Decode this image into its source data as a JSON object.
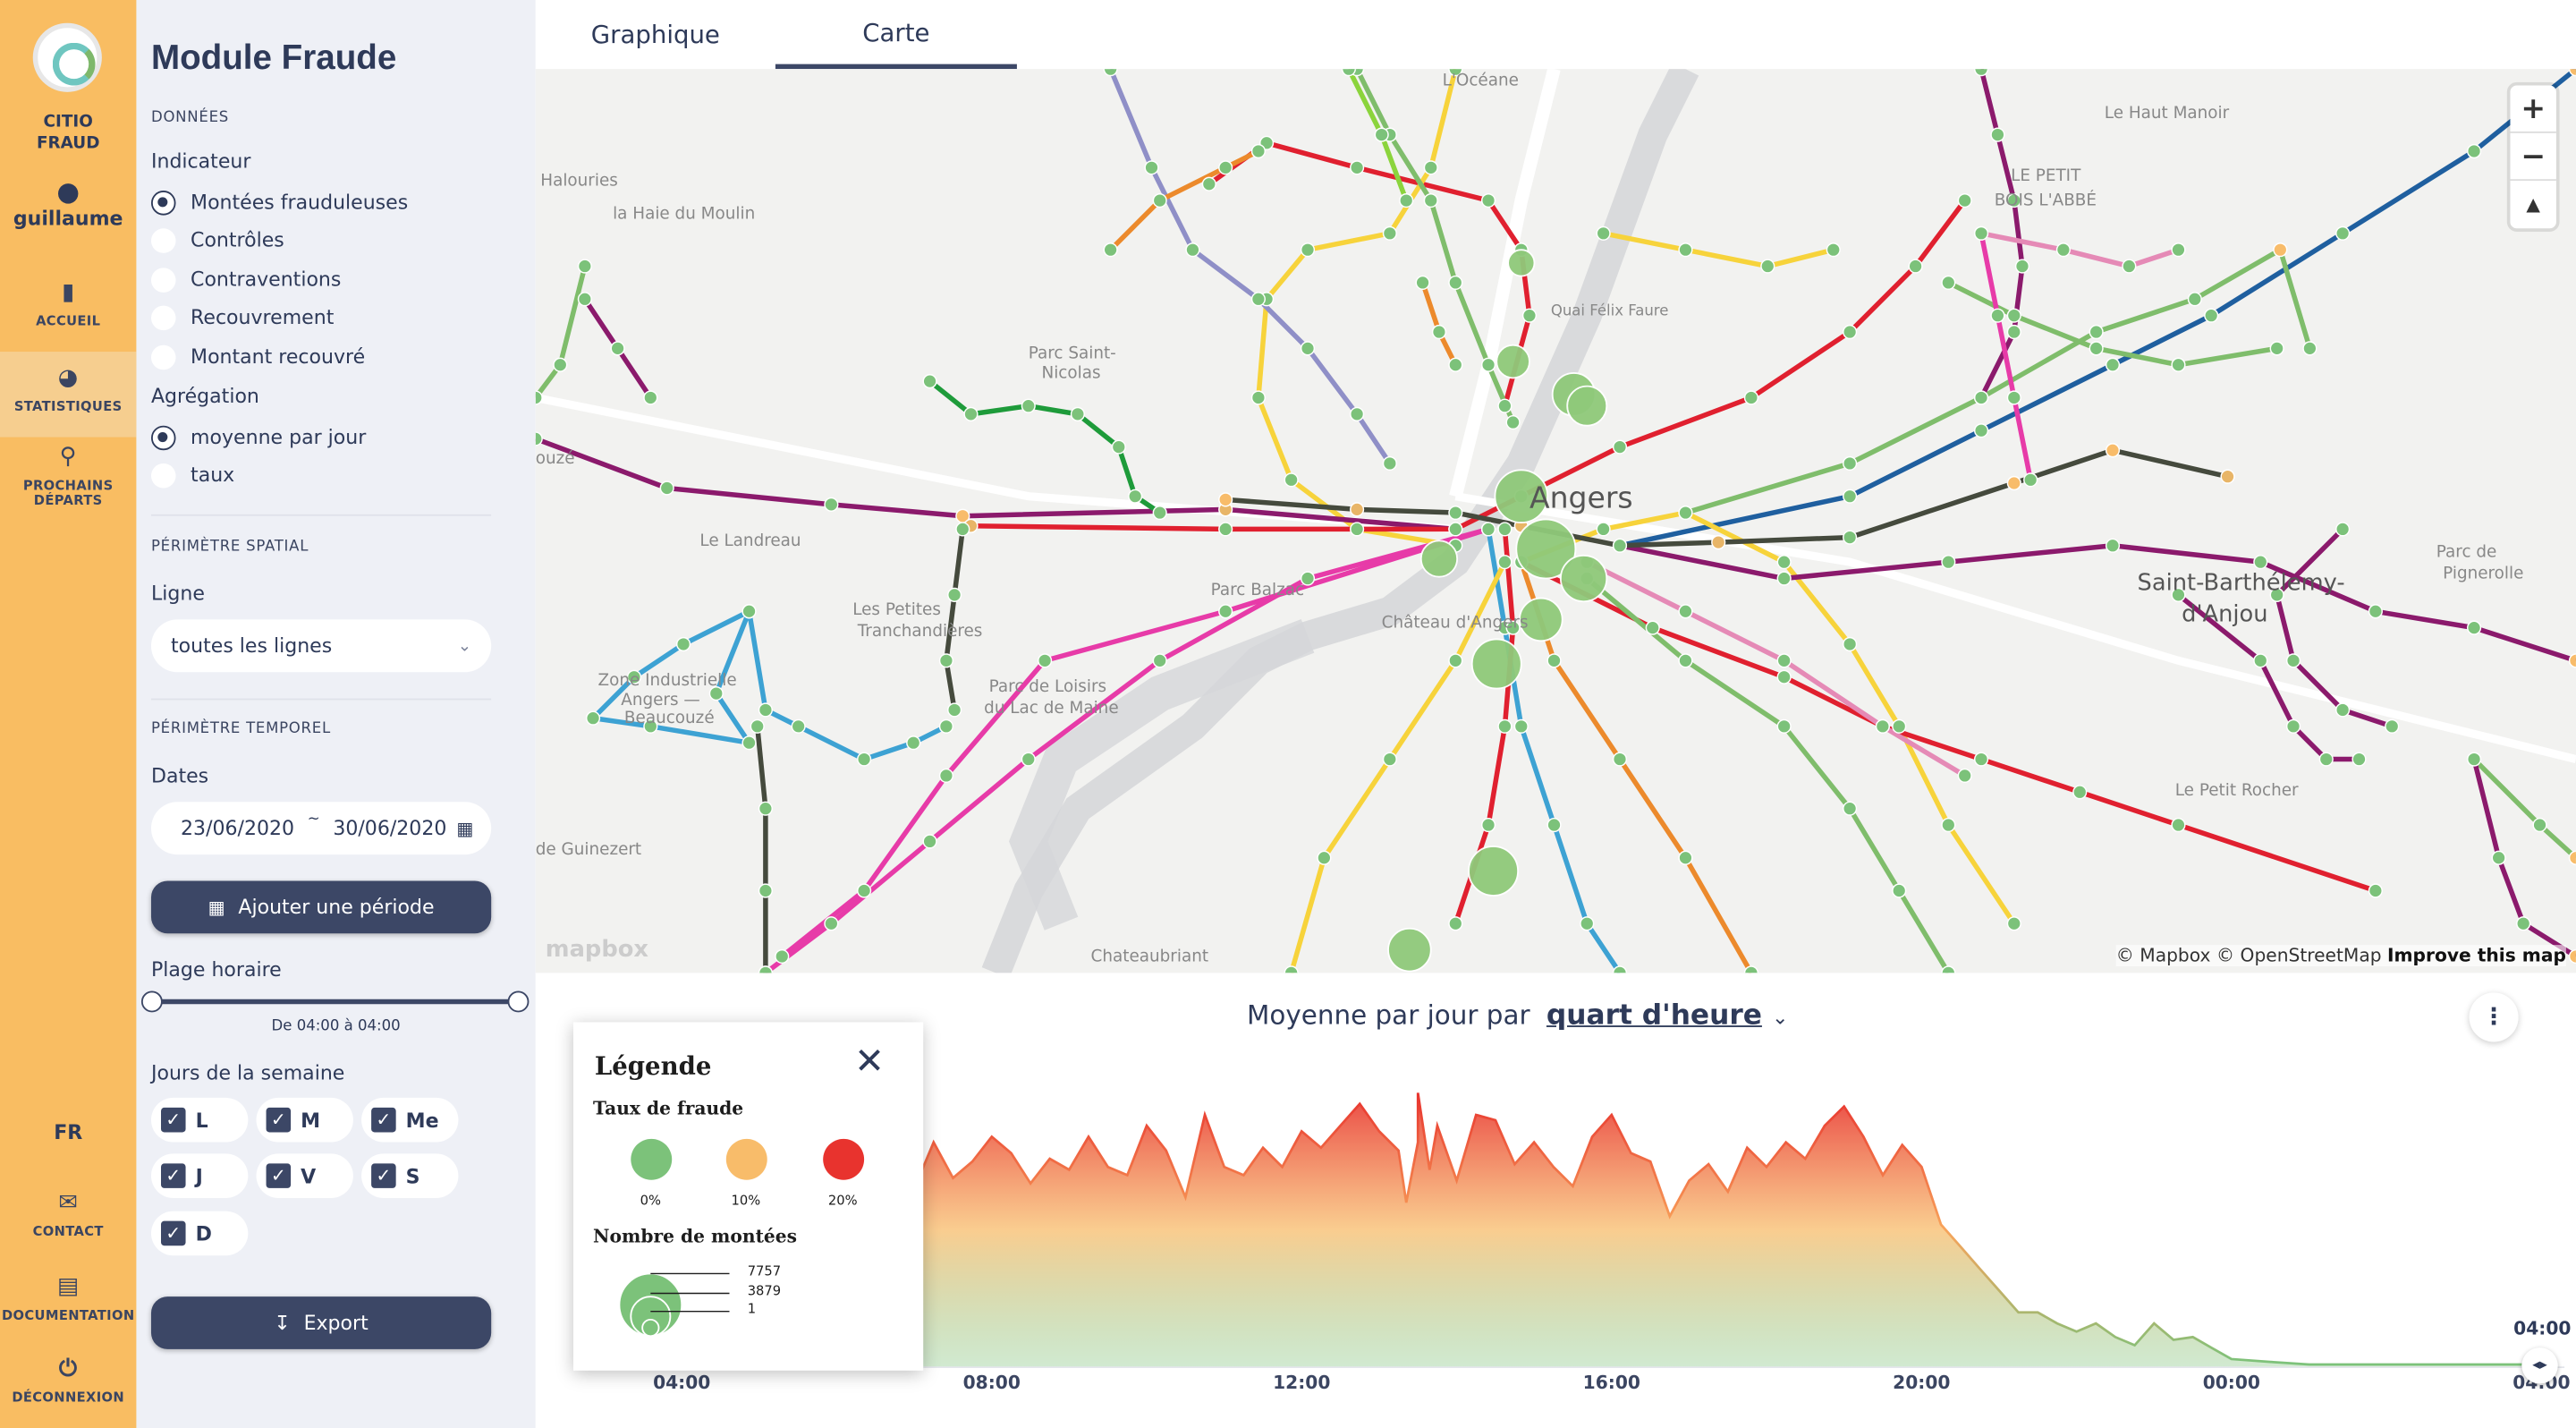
{
  "nav": {
    "brand_line1": "CITIO",
    "brand_line2": "FRAUD",
    "user": "guillaume",
    "items": [
      {
        "label": "ACCUEIL",
        "icon": "bar-chart-icon"
      },
      {
        "label": "STATISTIQUES",
        "icon": "pie-chart-icon"
      },
      {
        "label_line1": "PROCHAINS",
        "label_line2": "DÉPARTS",
        "icon": "map-pin-icon"
      }
    ],
    "lang": "FR",
    "contact": "CONTACT",
    "documentation": "DOCUMENTATION",
    "logout": "DÉCONNEXION",
    "accent_color": "#f9bd62"
  },
  "panel": {
    "title": "Module Fraude",
    "section_data": "DONNÉES",
    "indicator_label": "Indicateur",
    "indicators": [
      "Montées frauduleuses",
      "Contrôles",
      "Contraventions",
      "Recouvrement",
      "Montant recouvré"
    ],
    "indicator_selected": "Montées frauduleuses",
    "aggregation_label": "Agrégation",
    "aggregations": [
      "moyenne par jour",
      "taux"
    ],
    "aggregation_selected": "moyenne par jour",
    "section_spatial": "PÉRIMÈTRE SPATIAL",
    "line_label": "Ligne",
    "line_value": "toutes les lignes",
    "section_temporal": "PÉRIMÈTRE TEMPOREL",
    "dates_label": "Dates",
    "date_start": "23/06/2020",
    "date_sep": "~",
    "date_end": "30/06/2020",
    "add_period": "Ajouter une période",
    "time_range_label": "Plage horaire",
    "time_range_value": "De 04:00 à 04:00",
    "days_label": "Jours de la semaine",
    "days": [
      "L",
      "M",
      "Me",
      "J",
      "V",
      "S",
      "D"
    ],
    "export": "Export"
  },
  "tabs": {
    "chart": "Graphique",
    "map": "Carte",
    "active": "Carte"
  },
  "map": {
    "zoom_in": "+",
    "zoom_out": "−",
    "compass": "▲",
    "attribution_mapbox": "© Mapbox",
    "attribution_osm": "© OpenStreetMap",
    "improve": "Improve this map",
    "logo": "mapbox",
    "place_labels": [
      "L'Océane",
      "Le Haut Manoir",
      "Halouries",
      "la Haie du Moulin",
      "LE PETIT",
      "BOIS L'ABBÉ",
      "Parc Saint-",
      "Nicolas",
      "Quai Félix Faure",
      "Angers",
      "ouzé",
      "Le Landreau",
      "Château d'Angers",
      "Les Petites",
      "Tranchandières",
      "Parc Balzac",
      "Saint-Barthélemy-",
      "d'Anjou",
      "Parc de",
      "Pignerolle",
      "Zone Industrielle",
      "Angers —",
      "Beaucouzé",
      "Parc de Loisirs",
      "du Lac de Maine",
      "Le Petit Rocher",
      "de Guinezert",
      "Chateaubriant"
    ]
  },
  "chart": {
    "title_prefix": "Moyenne par jour par",
    "granularity": "quart d'heure",
    "end_label": "04:00",
    "menu_icon": "kebab-menu-icon"
  },
  "legend": {
    "title": "Légende",
    "rate_title": "Taux de fraude",
    "rates": [
      {
        "label": "0%",
        "color": "#7cc27a"
      },
      {
        "label": "10%",
        "color": "#f8bc6a"
      },
      {
        "label": "20%",
        "color": "#e8332e"
      }
    ],
    "count_title": "Nombre de montées",
    "counts": [
      "7757",
      "3879",
      "1"
    ]
  },
  "chart_data": {
    "type": "area",
    "title": "Moyenne par jour par quart d'heure",
    "xlabel": "",
    "ylabel": "",
    "x_ticks": [
      "04:00",
      "08:00",
      "12:00",
      "16:00",
      "20:00",
      "00:00",
      "04:00"
    ],
    "gradient_colors": [
      "#7cc27a",
      "#f8bc6a",
      "#e8332e"
    ],
    "x_hours": [
      4.0,
      4.25,
      4.5,
      4.75,
      5.0,
      5.25,
      5.5,
      5.75,
      6.0,
      6.25,
      6.5,
      6.75,
      7.0,
      7.25,
      7.5,
      7.75,
      8.0,
      8.25,
      8.5,
      8.75,
      9.0,
      9.25,
      9.5,
      9.75,
      10.0,
      10.25,
      10.5,
      10.75,
      11.0,
      11.25,
      11.5,
      11.75,
      12.0,
      12.25,
      12.5,
      12.75,
      13.0,
      13.25,
      13.5,
      13.75,
      14.0,
      14.25,
      14.5,
      14.75,
      15.0,
      15.25,
      15.5,
      15.75,
      16.0,
      16.25,
      16.5,
      16.75,
      17.0,
      17.25,
      17.5,
      17.75,
      18.0,
      18.25,
      18.5,
      18.75,
      19.0,
      19.25,
      19.5,
      19.75,
      20.0,
      20.25,
      20.5,
      20.75,
      21.0,
      21.25,
      21.5,
      21.75,
      22.0,
      22.25,
      22.5,
      22.75,
      23.0,
      23.25,
      23.5,
      23.75,
      24.0,
      24.5,
      25.0,
      26.0,
      27.0,
      28.0
    ],
    "values": [
      58,
      62,
      60,
      55,
      64,
      68,
      66,
      72,
      70,
      74,
      78,
      63,
      65,
      82,
      69,
      75,
      84,
      78,
      67,
      76,
      72,
      84,
      73,
      70,
      88,
      79,
      62,
      92,
      73,
      70,
      80,
      73,
      86,
      80,
      88,
      96,
      86,
      79,
      82,
      88,
      68,
      92,
      90,
      74,
      82,
      73,
      66,
      84,
      92,
      78,
      75,
      55,
      68,
      74,
      64,
      80,
      73,
      82,
      76,
      88,
      95,
      84,
      70,
      81,
      73,
      52,
      44,
      36,
      28,
      20,
      20,
      16,
      13,
      16,
      11,
      8,
      16,
      10,
      11,
      7,
      3,
      2,
      1,
      1,
      1,
      1
    ],
    "spike": {
      "x": 13.5,
      "value": 100
    }
  }
}
